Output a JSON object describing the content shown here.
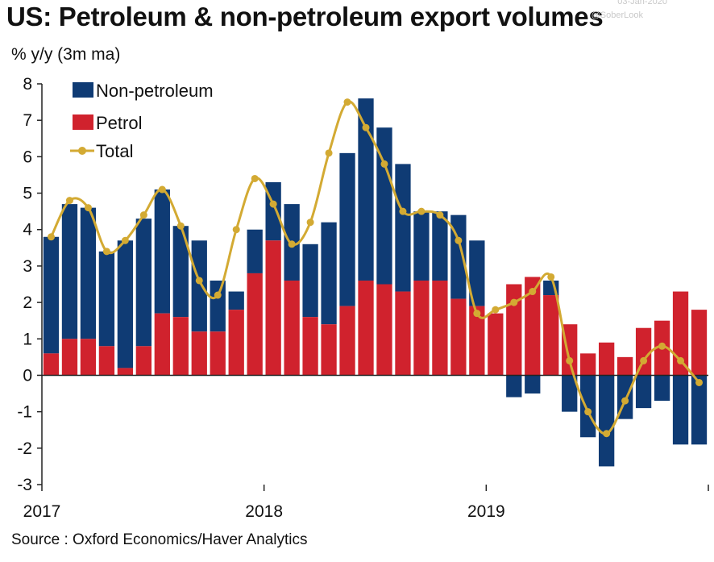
{
  "title": "US: Petroleum & non-petroleum export volumes",
  "watermark": {
    "date": "03-Jan-2020",
    "handle": "@SoberLook"
  },
  "units": "% y/y (3m ma)",
  "source": "Source : Oxford Economics/Haver Analytics",
  "colors": {
    "non_petroleum": "#0f3b74",
    "petrol": "#d0222d",
    "total": "#d3aa33"
  },
  "chart_data": {
    "type": "bar",
    "stacked": true,
    "ylim": [
      -3,
      8
    ],
    "yticks": [
      8,
      7,
      6,
      5,
      4,
      3,
      2,
      1,
      0,
      -1,
      -2,
      -3
    ],
    "xtick_labels": [
      {
        "label": "2017",
        "index": 0
      },
      {
        "label": "2018",
        "index": 12
      },
      {
        "label": "2019",
        "index": 24
      }
    ],
    "legend_position": "top-left",
    "categories": [
      "Jan-17",
      "Feb-17",
      "Mar-17",
      "Apr-17",
      "May-17",
      "Jun-17",
      "Jul-17",
      "Aug-17",
      "Sep-17",
      "Oct-17",
      "Nov-17",
      "Dec-17",
      "Jan-18",
      "Feb-18",
      "Mar-18",
      "Apr-18",
      "May-18",
      "Jun-18",
      "Jul-18",
      "Aug-18",
      "Sep-18",
      "Oct-18",
      "Nov-18",
      "Dec-18",
      "Jan-19",
      "Feb-19",
      "Mar-19",
      "Apr-19",
      "May-19",
      "Jun-19",
      "Jul-19",
      "Aug-19",
      "Sep-19",
      "Oct-19",
      "Nov-19",
      "Dec-19"
    ],
    "series": [
      {
        "name": "Non-petroleum",
        "kind": "bar",
        "values": [
          3.2,
          3.7,
          3.6,
          2.6,
          3.5,
          3.5,
          3.4,
          2.5,
          2.5,
          1.4,
          0.5,
          1.2,
          1.6,
          2.1,
          2.0,
          2.8,
          4.2,
          5.0,
          4.3,
          3.5,
          1.9,
          1.9,
          2.3,
          1.8,
          0.0,
          -0.6,
          -0.5,
          0.4,
          -1.0,
          -1.7,
          -2.5,
          -1.2,
          -0.9,
          -0.7,
          -1.9,
          -1.9
        ]
      },
      {
        "name": "Petrol",
        "kind": "bar",
        "values": [
          0.6,
          1.0,
          1.0,
          0.8,
          0.2,
          0.8,
          1.7,
          1.6,
          1.2,
          1.2,
          1.8,
          2.8,
          3.7,
          2.6,
          1.6,
          1.4,
          1.9,
          2.6,
          2.5,
          2.3,
          2.6,
          2.6,
          2.1,
          1.9,
          1.7,
          2.5,
          2.7,
          2.2,
          1.4,
          0.6,
          0.9,
          0.5,
          1.3,
          1.5,
          2.3,
          1.8
        ]
      },
      {
        "name": "Total",
        "kind": "line",
        "values": [
          3.8,
          4.8,
          4.6,
          3.4,
          3.7,
          4.4,
          5.1,
          4.1,
          2.6,
          2.2,
          4.0,
          5.4,
          4.7,
          3.6,
          4.2,
          6.1,
          7.5,
          6.8,
          5.8,
          4.5,
          4.5,
          4.4,
          3.7,
          1.7,
          1.8,
          2.0,
          2.3,
          2.7,
          0.4,
          -1.0,
          -1.6,
          -0.7,
          0.4,
          0.8,
          0.4,
          -0.2
        ]
      }
    ]
  }
}
